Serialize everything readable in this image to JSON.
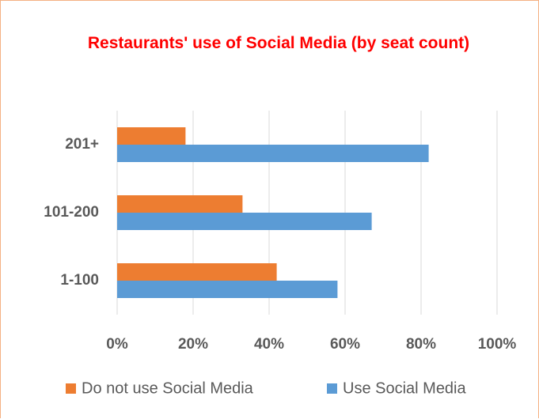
{
  "chart_data": {
    "type": "hbar",
    "title": "Restaurants' use of Social Media (by seat count)",
    "categories": [
      "201+",
      "101-200",
      "1-100"
    ],
    "series": [
      {
        "name": "Do not use Social Media",
        "color": "#ed7d31",
        "values": [
          18,
          33,
          42
        ]
      },
      {
        "name": "Use Social Media",
        "color": "#5b9bd5",
        "values": [
          82,
          67,
          58
        ]
      }
    ],
    "xlim": [
      0,
      100
    ],
    "xticks": [
      {
        "value": 0,
        "label": "0%"
      },
      {
        "value": 20,
        "label": "20%"
      },
      {
        "value": 40,
        "label": "40%"
      },
      {
        "value": 60,
        "label": "60%"
      },
      {
        "value": 80,
        "label": "80%"
      },
      {
        "value": 100,
        "label": "100%"
      }
    ],
    "grid": true,
    "legend": "bottom"
  }
}
